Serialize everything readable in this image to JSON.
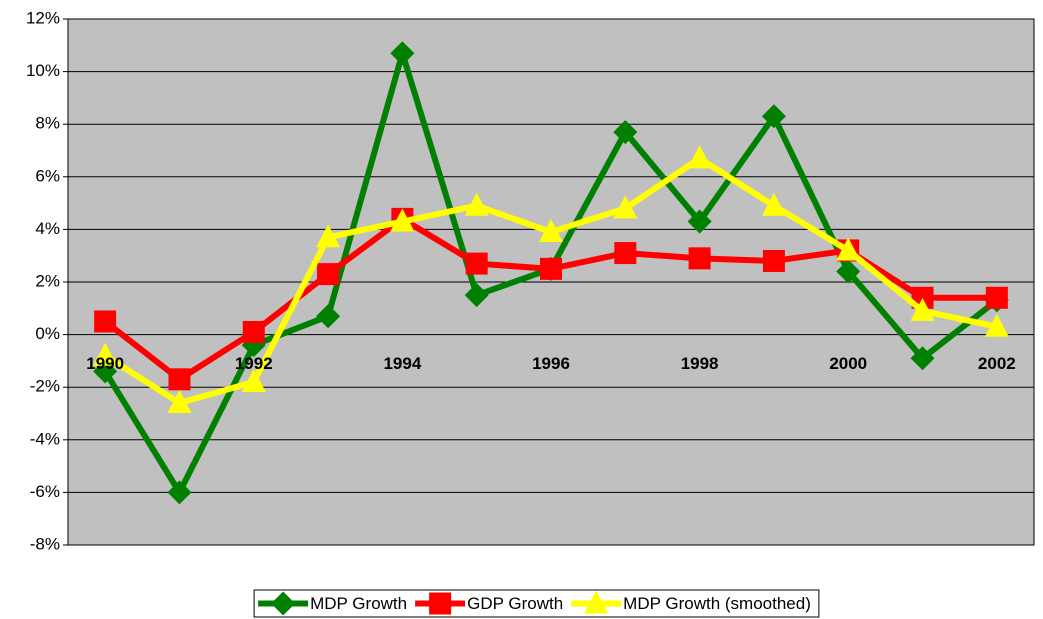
{
  "chart_data": {
    "type": "line",
    "categories": [
      "1990",
      null,
      "1992",
      null,
      "1994",
      null,
      "1996",
      null,
      "1998",
      null,
      "2000",
      null,
      "2002"
    ],
    "series": [
      {
        "name": "MDP Growth",
        "color": "#008000",
        "marker": "diamond",
        "values": [
          -1.4,
          -6.0,
          -0.4,
          0.7,
          10.7,
          1.5,
          2.5,
          7.7,
          4.3,
          8.3,
          2.4,
          -0.9,
          1.3
        ]
      },
      {
        "name": "GDP Growth",
        "color": "#ff0000",
        "marker": "square",
        "values": [
          0.5,
          -1.7,
          0.1,
          2.3,
          4.4,
          2.7,
          2.5,
          3.1,
          2.9,
          2.8,
          3.2,
          1.4,
          1.4
        ]
      },
      {
        "name": "MDP Growth (smoothed)",
        "color": "#ffff00",
        "marker": "triangle",
        "values": [
          -0.8,
          -2.6,
          -1.8,
          3.7,
          4.3,
          4.9,
          3.9,
          4.8,
          6.7,
          4.9,
          3.2,
          0.9,
          0.3
        ]
      }
    ],
    "ylim": [
      -8,
      12
    ],
    "yticks": [
      {
        "value": -8,
        "label": "-8%"
      },
      {
        "value": -6,
        "label": "-6%"
      },
      {
        "value": -4,
        "label": "-4%"
      },
      {
        "value": -2,
        "label": "-2%"
      },
      {
        "value": 0,
        "label": "0%"
      },
      {
        "value": 2,
        "label": "2%"
      },
      {
        "value": 4,
        "label": "4%"
      },
      {
        "value": 6,
        "label": "6%"
      },
      {
        "value": 8,
        "label": "8%"
      },
      {
        "value": 10,
        "label": "10%"
      },
      {
        "value": 12,
        "label": "12%"
      }
    ],
    "grid": true,
    "plot_background": "#c0c0c0",
    "legend": "bottom"
  }
}
